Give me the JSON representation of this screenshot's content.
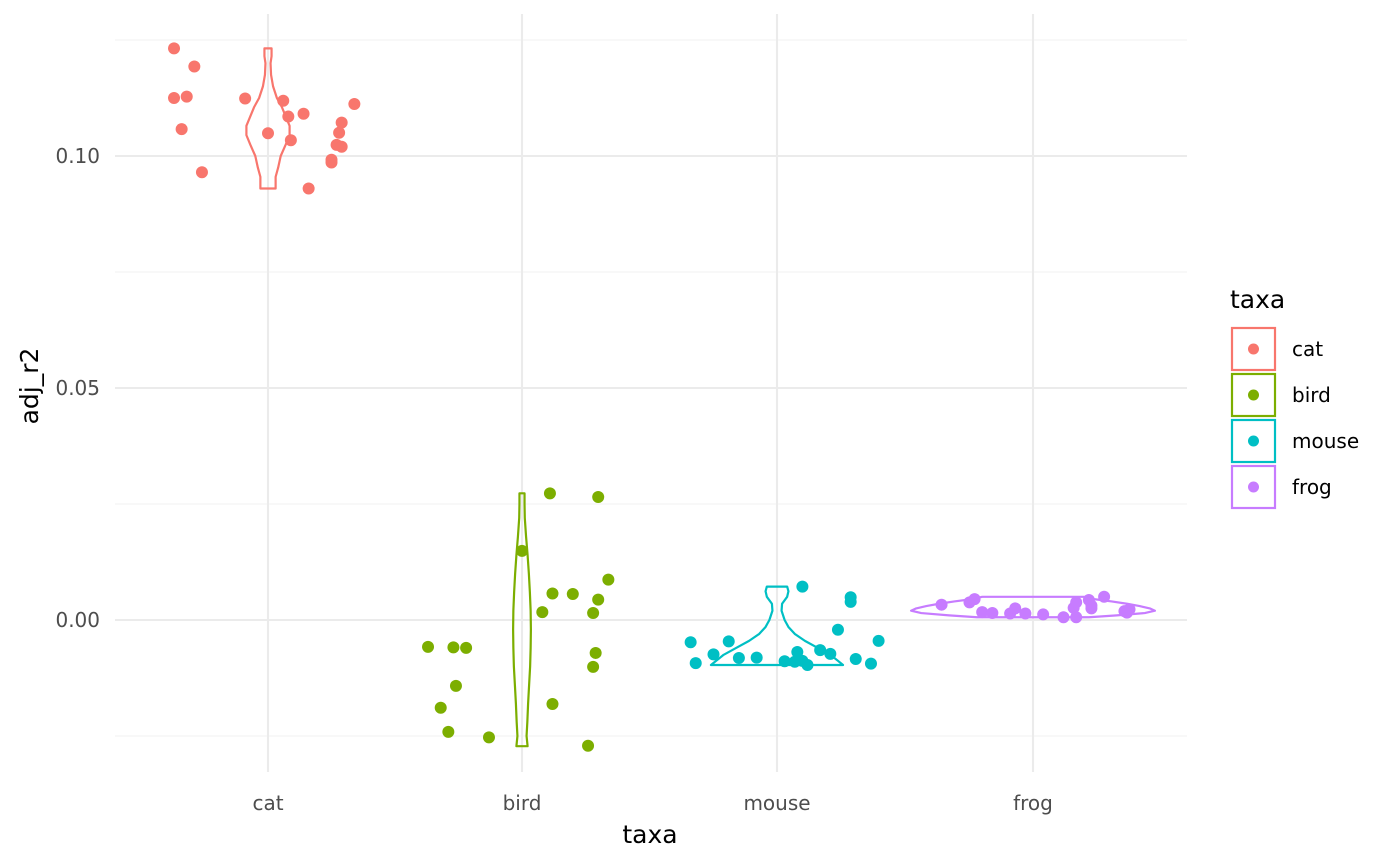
{
  "chart_data": {
    "type": "violin+jitter",
    "xlabel": "taxa",
    "ylabel": "adj_r2",
    "categories": [
      "cat",
      "bird",
      "mouse",
      "frog"
    ],
    "ylim": [
      -0.028,
      0.126
    ],
    "yticks": [
      0.0,
      0.05,
      0.1
    ],
    "ytick_labels": [
      "0.00",
      "0.05",
      "0.10"
    ],
    "grid": true,
    "legend": {
      "title": "taxa",
      "position": "right",
      "entries": [
        "cat",
        "bird",
        "mouse",
        "frog"
      ]
    },
    "colors": {
      "cat": "#F8766D",
      "bird": "#7CAE00",
      "mouse": "#00BFC4",
      "frog": "#C77CFF"
    },
    "series": [
      {
        "name": "cat",
        "points": [
          [
            -0.37,
            0.1232
          ],
          [
            -0.29,
            0.1193
          ],
          [
            -0.37,
            0.1125
          ],
          [
            -0.32,
            0.1128
          ],
          [
            -0.34,
            0.1058
          ],
          [
            -0.26,
            0.0965
          ],
          [
            -0.09,
            0.1124
          ],
          [
            0.06,
            0.1119
          ],
          [
            0.14,
            0.1091
          ],
          [
            0.08,
            0.1085
          ],
          [
            0.34,
            0.1112
          ],
          [
            0.29,
            0.1072
          ],
          [
            0.0,
            0.1049
          ],
          [
            0.28,
            0.105
          ],
          [
            0.09,
            0.1034
          ],
          [
            0.27,
            0.1024
          ],
          [
            0.29,
            0.102
          ],
          [
            0.25,
            0.0992
          ],
          [
            0.25,
            0.0986
          ],
          [
            0.16,
            0.093
          ]
        ]
      },
      {
        "name": "bird",
        "points": [
          [
            0.11,
            0.0273
          ],
          [
            0.3,
            0.0265
          ],
          [
            0.0,
            0.0149
          ],
          [
            0.34,
            0.0087
          ],
          [
            0.12,
            0.0057
          ],
          [
            0.2,
            0.0056
          ],
          [
            0.3,
            0.0044
          ],
          [
            0.08,
            0.0017
          ],
          [
            0.28,
            0.0015
          ],
          [
            -0.37,
            -0.0058
          ],
          [
            -0.27,
            -0.0059
          ],
          [
            -0.22,
            -0.006
          ],
          [
            0.29,
            -0.0071
          ],
          [
            0.28,
            -0.0101
          ],
          [
            -0.26,
            -0.0142
          ],
          [
            -0.32,
            -0.0189
          ],
          [
            0.12,
            -0.0181
          ],
          [
            -0.29,
            -0.0241
          ],
          [
            -0.13,
            -0.0253
          ],
          [
            0.26,
            -0.0271
          ]
        ]
      },
      {
        "name": "mouse",
        "points": [
          [
            0.1,
            0.0072
          ],
          [
            0.29,
            0.0049
          ],
          [
            0.29,
            0.0039
          ],
          [
            0.24,
            -0.0021
          ],
          [
            -0.34,
            -0.0048
          ],
          [
            0.4,
            -0.0045
          ],
          [
            -0.19,
            -0.0046
          ],
          [
            -0.25,
            -0.0074
          ],
          [
            0.08,
            -0.0069
          ],
          [
            0.17,
            -0.0065
          ],
          [
            0.21,
            -0.0073
          ],
          [
            -0.15,
            -0.0082
          ],
          [
            -0.08,
            -0.0081
          ],
          [
            0.03,
            -0.0089
          ],
          [
            0.07,
            -0.009
          ],
          [
            0.1,
            -0.0088
          ],
          [
            0.31,
            -0.0084
          ],
          [
            -0.32,
            -0.0093
          ],
          [
            0.12,
            -0.0097
          ],
          [
            0.37,
            -0.0094
          ]
        ]
      },
      {
        "name": "frog",
        "points": [
          [
            -0.36,
            0.0033
          ],
          [
            -0.25,
            0.0038
          ],
          [
            -0.23,
            0.0045
          ],
          [
            -0.2,
            0.0017
          ],
          [
            -0.16,
            0.0015
          ],
          [
            -0.09,
            0.0014
          ],
          [
            -0.07,
            0.0025
          ],
          [
            -0.03,
            0.0014
          ],
          [
            0.04,
            0.0012
          ],
          [
            0.12,
            0.0006
          ],
          [
            0.16,
            0.0026
          ],
          [
            0.17,
            0.0038
          ],
          [
            0.17,
            0.0006
          ],
          [
            0.22,
            0.0043
          ],
          [
            0.23,
            0.0025
          ],
          [
            0.23,
            0.0031
          ],
          [
            0.28,
            0.005
          ],
          [
            0.37,
            0.0016
          ],
          [
            0.38,
            0.0023
          ],
          [
            0.36,
            0.0019
          ]
        ]
      }
    ],
    "violins": [
      {
        "name": "cat",
        "profile": [
          [
            0.093,
            0.03
          ],
          [
            0.0955,
            0.03
          ],
          [
            0.0975,
            0.04
          ],
          [
            0.1,
            0.05
          ],
          [
            0.1025,
            0.07
          ],
          [
            0.1045,
            0.085
          ],
          [
            0.1065,
            0.085
          ],
          [
            0.1085,
            0.07
          ],
          [
            0.1105,
            0.055
          ],
          [
            0.1125,
            0.035
          ],
          [
            0.115,
            0.02
          ],
          [
            0.1175,
            0.012
          ],
          [
            0.12,
            0.01
          ],
          [
            0.1215,
            0.014
          ],
          [
            0.1232,
            0.014
          ]
        ]
      },
      {
        "name": "bird",
        "profile": [
          [
            -0.0272,
            0.022
          ],
          [
            -0.025,
            0.018
          ],
          [
            -0.022,
            0.021
          ],
          [
            -0.018,
            0.024
          ],
          [
            -0.014,
            0.028
          ],
          [
            -0.01,
            0.032
          ],
          [
            -0.006,
            0.034
          ],
          [
            -0.002,
            0.035
          ],
          [
            0.002,
            0.034
          ],
          [
            0.006,
            0.031
          ],
          [
            0.01,
            0.027
          ],
          [
            0.014,
            0.022
          ],
          [
            0.018,
            0.016
          ],
          [
            0.022,
            0.011
          ],
          [
            0.025,
            0.01
          ],
          [
            0.0273,
            0.01
          ]
        ]
      },
      {
        "name": "mouse",
        "profile": [
          [
            -0.0097,
            0.26
          ],
          [
            -0.0088,
            0.24
          ],
          [
            -0.0075,
            0.21
          ],
          [
            -0.006,
            0.16
          ],
          [
            -0.0045,
            0.11
          ],
          [
            -0.003,
            0.07
          ],
          [
            -0.0015,
            0.045
          ],
          [
            0.0,
            0.03
          ],
          [
            0.002,
            0.018
          ],
          [
            0.0035,
            0.02
          ],
          [
            0.005,
            0.04
          ],
          [
            0.0062,
            0.045
          ],
          [
            0.0072,
            0.04
          ]
        ]
      },
      {
        "name": "frog",
        "profile": [
          [
            0.0006,
            0.22
          ],
          [
            0.001,
            0.33
          ],
          [
            0.0015,
            0.44
          ],
          [
            0.002,
            0.48
          ],
          [
            0.0025,
            0.46
          ],
          [
            0.003,
            0.42
          ],
          [
            0.0035,
            0.37
          ],
          [
            0.004,
            0.31
          ],
          [
            0.0045,
            0.24
          ],
          [
            0.005,
            0.2
          ]
        ]
      }
    ]
  }
}
